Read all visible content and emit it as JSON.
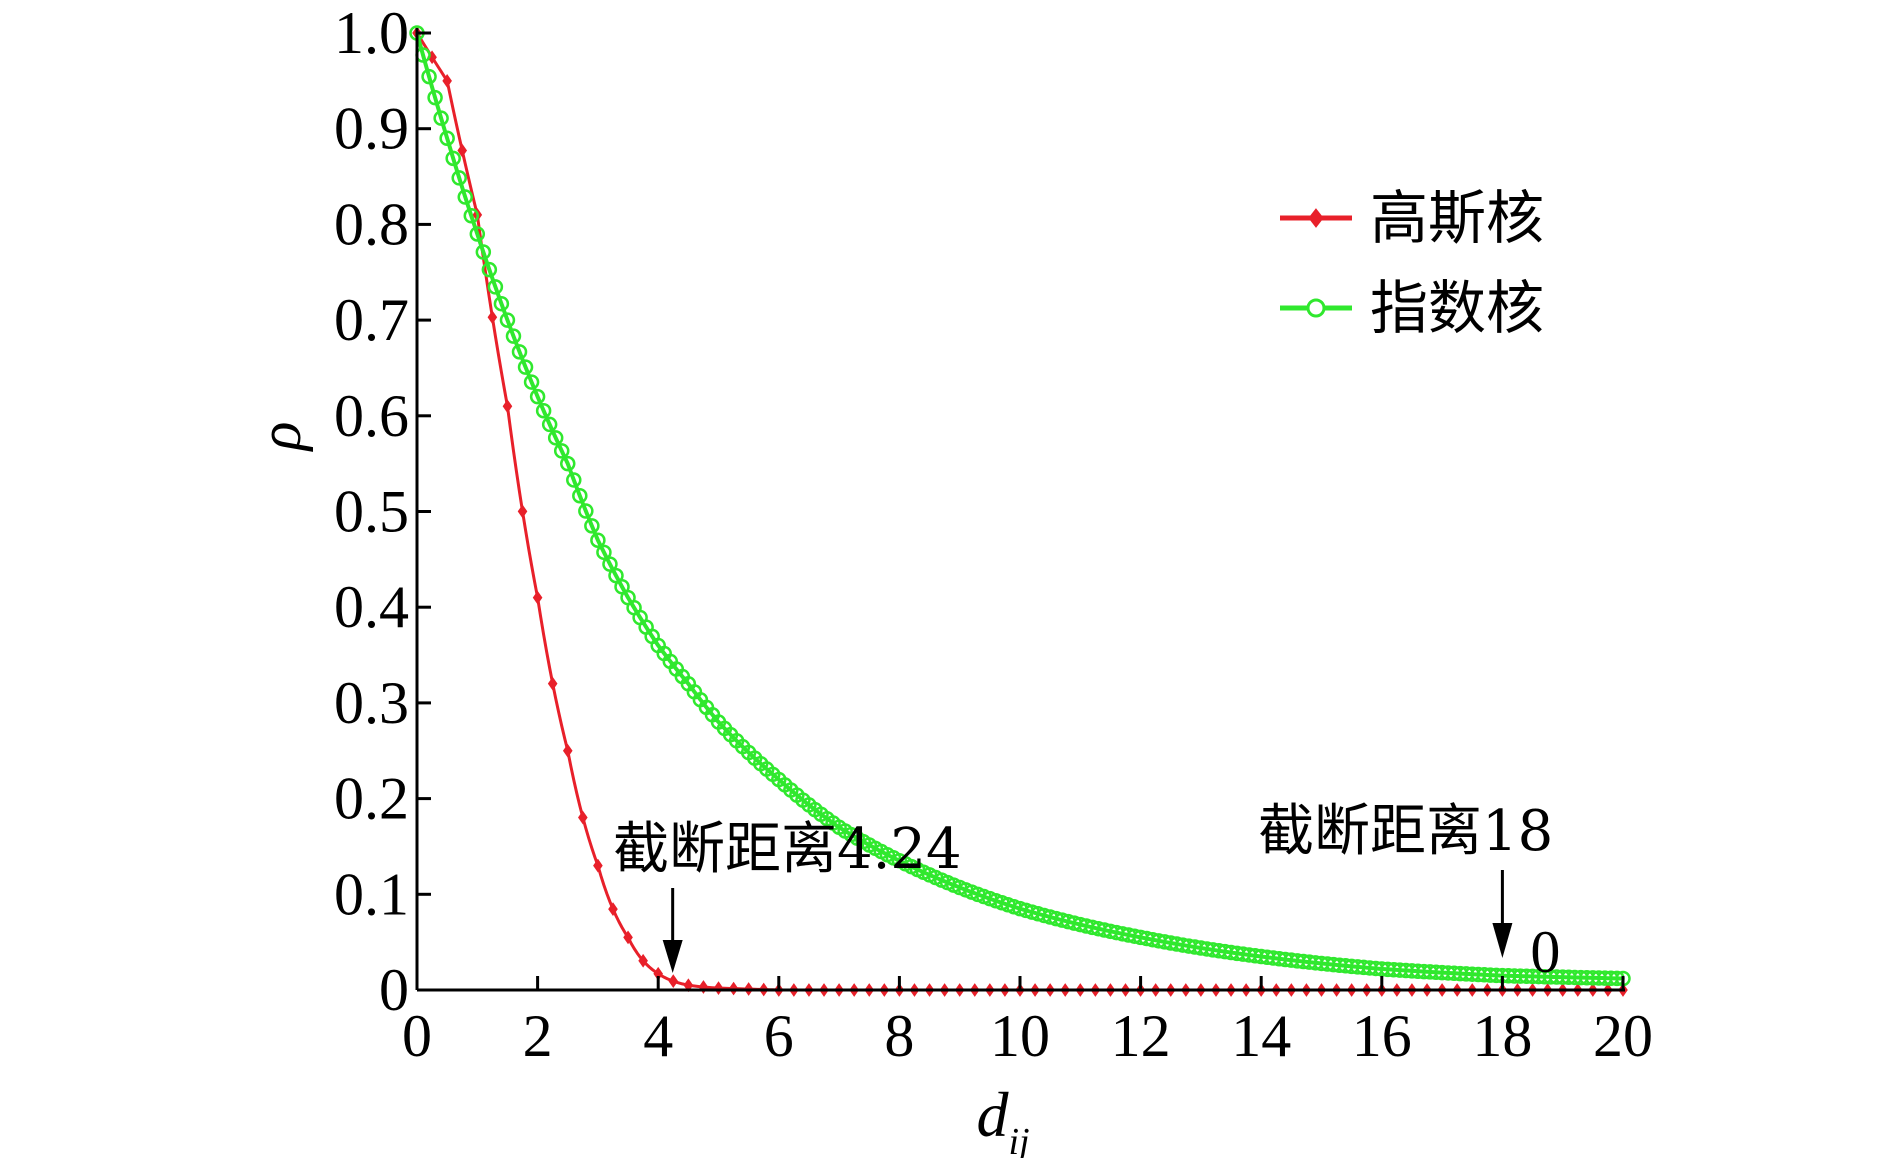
{
  "chart_data": {
    "type": "line",
    "xlabel": "d",
    "xlabel_sub": "ij",
    "ylabel": "ρ",
    "xlim": [
      0,
      20
    ],
    "ylim": [
      0,
      1.0
    ],
    "x_ticks": [
      0,
      2,
      4,
      6,
      8,
      10,
      12,
      14,
      16,
      18,
      20
    ],
    "y_ticks": [
      0,
      0.1,
      0.2,
      0.3,
      0.4,
      0.5,
      0.6,
      0.7,
      0.8,
      0.9,
      1.0
    ],
    "x_tick_labels": [
      "0",
      "2",
      "4",
      "6",
      "8",
      "10",
      "12",
      "14",
      "16",
      "18",
      "20"
    ],
    "y_tick_labels": [
      "0",
      "0.1",
      "0.2",
      "0.3",
      "0.4",
      "0.5",
      "0.6",
      "0.7",
      "0.8",
      "0.9",
      "1.0"
    ],
    "grid": false,
    "legend_position": "top-right",
    "series": [
      {
        "name": "高斯核",
        "color": "#e8202a",
        "marker": "diamond",
        "x": [
          0,
          0.5,
          1,
          1.5,
          2,
          2.5,
          3,
          3.5,
          4,
          4.5,
          5,
          6,
          8,
          10,
          12,
          14,
          16,
          18,
          20
        ],
        "values": [
          1.0,
          0.95,
          0.81,
          0.61,
          0.41,
          0.25,
          0.13,
          0.055,
          0.017,
          0.005,
          0.002,
          0,
          0,
          0,
          0,
          0,
          0,
          0,
          0
        ]
      },
      {
        "name": "指数核",
        "color": "#30e82e",
        "marker": "circle",
        "x": [
          0,
          0.5,
          1,
          1.5,
          2,
          2.5,
          3,
          3.5,
          4,
          4.5,
          5,
          6,
          7,
          8,
          10,
          12,
          14,
          16,
          18,
          20
        ],
        "values": [
          1.0,
          0.89,
          0.79,
          0.7,
          0.62,
          0.55,
          0.47,
          0.41,
          0.36,
          0.32,
          0.28,
          0.22,
          0.17,
          0.135,
          0.085,
          0.055,
          0.035,
          0.022,
          0.015,
          0.012
        ]
      }
    ],
    "annotations": [
      {
        "text": "截断距离4.24",
        "x": 4.24,
        "y": 0
      },
      {
        "text": "截断距离18",
        "x": 18,
        "y": 0,
        "value_label": "0"
      }
    ]
  }
}
